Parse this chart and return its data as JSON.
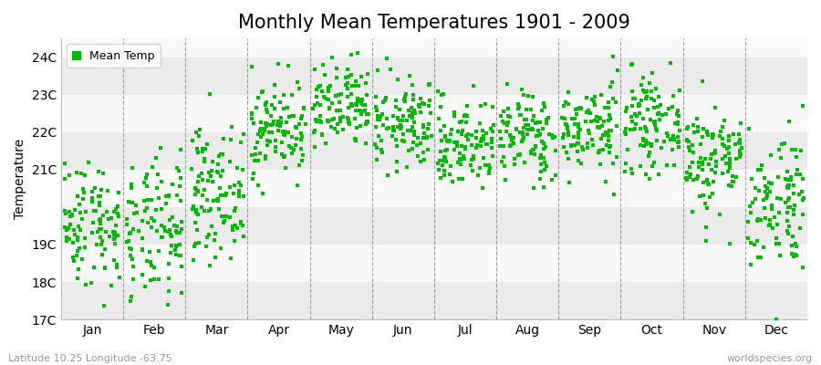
{
  "title": "Monthly Mean Temperatures 1901 - 2009",
  "ylabel": "Temperature",
  "footer_left": "Latitude 10.25 Longitude -63.75",
  "footer_right": "worldspecies.org",
  "ylim": [
    17.0,
    24.5
  ],
  "yticks": [
    17,
    18,
    19,
    21,
    22,
    23,
    24
  ],
  "ytick_labels": [
    "17C",
    "18C",
    "19C",
    "21C",
    "22C",
    "23C",
    "24C"
  ],
  "months": [
    "Jan",
    "Feb",
    "Mar",
    "Apr",
    "May",
    "Jun",
    "Jul",
    "Aug",
    "Sep",
    "Oct",
    "Nov",
    "Dec"
  ],
  "dot_color": "#00bb00",
  "dot_size": 3,
  "background_color": "#f2f2f2",
  "band_colors": [
    "#ebebeb",
    "#f9f9f9"
  ],
  "title_fontsize": 15,
  "axis_fontsize": 10,
  "tick_fontsize": 10,
  "legend_label": "Mean Temp",
  "seed": 42,
  "n_years": 109,
  "monthly_mean": [
    19.6,
    19.3,
    20.4,
    22.1,
    22.6,
    22.2,
    21.7,
    21.9,
    22.1,
    22.2,
    21.3,
    20.2
  ],
  "monthly_std": [
    0.85,
    0.95,
    0.85,
    0.65,
    0.6,
    0.6,
    0.6,
    0.6,
    0.6,
    0.6,
    0.75,
    0.95
  ]
}
